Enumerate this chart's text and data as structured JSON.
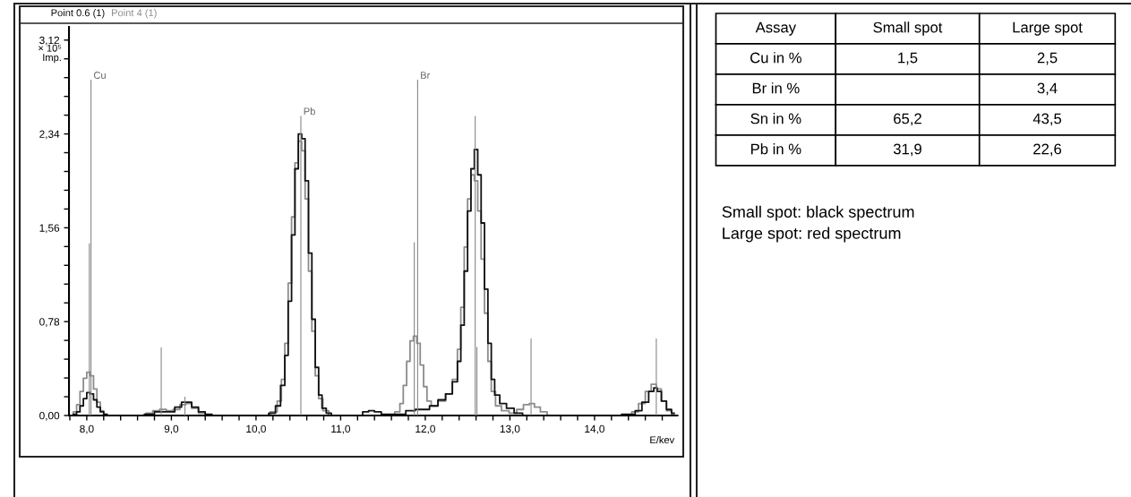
{
  "chart_data": [
    {
      "type": "step",
      "legend": "top left",
      "xlabel": "E/kev",
      "ylabel": "× 10⁵\nImp.",
      "xlim": [
        7.79,
        14.98
      ],
      "ylim": [
        0,
        3.23
      ],
      "xticks": [
        {
          "value": 7.8,
          "label": null
        },
        {
          "value": 8.0,
          "label": "8,0"
        },
        {
          "value": 8.2,
          "label": null
        },
        {
          "value": 8.4,
          "label": null
        },
        {
          "value": 8.6,
          "label": null
        },
        {
          "value": 8.8,
          "label": null
        },
        {
          "value": 9.0,
          "label": "9,0"
        },
        {
          "value": 9.2,
          "label": null
        },
        {
          "value": 9.4,
          "label": null
        },
        {
          "value": 9.6,
          "label": null
        },
        {
          "value": 9.8,
          "label": null
        },
        {
          "value": 10.0,
          "label": "10,0"
        },
        {
          "value": 10.2,
          "label": null
        },
        {
          "value": 10.4,
          "label": null
        },
        {
          "value": 10.6,
          "label": null
        },
        {
          "value": 10.8,
          "label": null
        },
        {
          "value": 11.0,
          "label": "11,0"
        },
        {
          "value": 11.2,
          "label": null
        },
        {
          "value": 11.4,
          "label": null
        },
        {
          "value": 11.6,
          "label": null
        },
        {
          "value": 11.8,
          "label": null
        },
        {
          "value": 12.0,
          "label": "12,0"
        },
        {
          "value": 12.2,
          "label": null
        },
        {
          "value": 12.4,
          "label": null
        },
        {
          "value": 12.6,
          "label": null
        },
        {
          "value": 12.8,
          "label": null
        },
        {
          "value": 13.0,
          "label": "13,0"
        },
        {
          "value": 13.2,
          "label": null
        },
        {
          "value": 13.4,
          "label": null
        },
        {
          "value": 13.6,
          "label": null
        },
        {
          "value": 13.8,
          "label": null
        },
        {
          "value": 14.0,
          "label": "14,0"
        },
        {
          "value": 14.2,
          "label": null
        },
        {
          "value": 14.4,
          "label": null
        },
        {
          "value": 14.6,
          "label": null
        },
        {
          "value": 14.8,
          "label": null
        }
      ],
      "yticks": [
        {
          "value": 0,
          "label": "0,00"
        },
        {
          "value": 0.156,
          "label": null
        },
        {
          "value": 0.312,
          "label": null
        },
        {
          "value": 0.468,
          "label": null
        },
        {
          "value": 0.624,
          "label": null
        },
        {
          "value": 0.78,
          "label": "0,78"
        },
        {
          "value": 0.936,
          "label": null
        },
        {
          "value": 1.092,
          "label": null
        },
        {
          "value": 1.248,
          "label": null
        },
        {
          "value": 1.404,
          "label": null
        },
        {
          "value": 1.56,
          "label": "1,56"
        },
        {
          "value": 1.716,
          "label": null
        },
        {
          "value": 1.872,
          "label": null
        },
        {
          "value": 2.028,
          "label": null
        },
        {
          "value": 2.184,
          "label": null
        },
        {
          "value": 2.34,
          "label": "2,34"
        },
        {
          "value": 2.496,
          "label": null
        },
        {
          "value": 2.652,
          "label": null
        },
        {
          "value": 2.808,
          "label": null
        },
        {
          "value": 2.964,
          "label": null
        },
        {
          "value": 3.12,
          "label": "3,12"
        }
      ],
      "annotations": [
        {
          "text": "Cu",
          "x": 8.05,
          "y": 2.79
        },
        {
          "text": "Pb",
          "x": 10.53,
          "y": 2.49
        },
        {
          "text": "Br",
          "x": 11.91,
          "y": 2.79
        }
      ],
      "series": [
        {
          "type": "bar",
          "color": "#8a8a8a",
          "x": [
            8.03,
            8.05,
            8.88,
            9.16,
            10.53,
            11.87,
            11.91,
            12.59,
            12.61,
            13.25,
            14.73
          ],
          "values": [
            1.43,
            2.79,
            0.565,
            0.156,
            2.49,
            1.44,
            2.79,
            2.49,
            0.57,
            0.64,
            0.64
          ]
        },
        {
          "name": "Point 4 (1)",
          "color": "#8c8c8c",
          "x": [
            7.82,
            7.86,
            7.9,
            7.94,
            7.98,
            8.02,
            8.06,
            8.1,
            8.14,
            8.18,
            8.22,
            8.26,
            8.66,
            8.74,
            8.82,
            8.9,
            8.98,
            9.06,
            9.14,
            9.2,
            9.28,
            9.36,
            9.44,
            10.12,
            10.22,
            10.28,
            10.32,
            10.36,
            10.4,
            10.44,
            10.48,
            10.52,
            10.56,
            10.6,
            10.64,
            10.68,
            10.72,
            10.76,
            10.82,
            10.9,
            11.6,
            11.68,
            11.72,
            11.76,
            11.8,
            11.84,
            11.88,
            11.92,
            11.96,
            12.0,
            12.04,
            12.1,
            12.2,
            12.28,
            12.36,
            12.4,
            12.44,
            12.48,
            12.52,
            12.56,
            12.6,
            12.64,
            12.68,
            12.72,
            12.76,
            12.8,
            12.86,
            12.94,
            13.04,
            13.12,
            13.2,
            13.26,
            13.32,
            13.4,
            13.48,
            14.4,
            14.48,
            14.56,
            14.64,
            14.7,
            14.76,
            14.82,
            14.88,
            14.94
          ],
          "values": [
            0,
            0.03,
            0.09,
            0.2,
            0.31,
            0.36,
            0.33,
            0.22,
            0.11,
            0.04,
            0.01,
            0,
            0,
            0.02,
            0.04,
            0.05,
            0.04,
            0.05,
            0.09,
            0.1,
            0.06,
            0.02,
            0,
            0,
            0.03,
            0.12,
            0.3,
            0.6,
            1.1,
            1.65,
            2.1,
            2.28,
            2.2,
            1.8,
            1.2,
            0.7,
            0.33,
            0.14,
            0.04,
            0,
            0,
            0.03,
            0.1,
            0.25,
            0.45,
            0.62,
            0.66,
            0.6,
            0.42,
            0.24,
            0.12,
            0.08,
            0.12,
            0.18,
            0.3,
            0.55,
            0.9,
            1.4,
            1.8,
            2.0,
            1.95,
            1.7,
            1.3,
            0.85,
            0.45,
            0.2,
            0.08,
            0.04,
            0.02,
            0.05,
            0.09,
            0.1,
            0.07,
            0.03,
            0,
            0,
            0.03,
            0.1,
            0.2,
            0.26,
            0.22,
            0.12,
            0.04,
            0.01
          ]
        },
        {
          "name": "Point 0.6 (1)",
          "color": "#111111",
          "x": [
            7.82,
            7.86,
            7.9,
            7.94,
            7.98,
            8.02,
            8.06,
            8.1,
            8.14,
            8.18,
            8.22,
            8.26,
            8.6,
            8.76,
            8.84,
            8.92,
            9.0,
            9.08,
            9.16,
            9.2,
            9.28,
            9.36,
            9.44,
            9.52,
            10.1,
            10.2,
            10.26,
            10.32,
            10.36,
            10.4,
            10.44,
            10.48,
            10.52,
            10.56,
            10.6,
            10.64,
            10.68,
            10.72,
            10.76,
            10.8,
            10.86,
            10.92,
            11.22,
            11.3,
            11.36,
            11.44,
            11.52,
            11.7,
            11.84,
            11.92,
            12.0,
            12.1,
            12.2,
            12.28,
            12.36,
            12.4,
            12.44,
            12.48,
            12.52,
            12.56,
            12.6,
            12.64,
            12.68,
            12.72,
            12.76,
            12.8,
            12.84,
            12.92,
            13.0,
            13.1,
            13.2,
            14.2,
            14.44,
            14.52,
            14.6,
            14.68,
            14.72,
            14.76,
            14.82,
            14.88,
            14.94
          ],
          "values": [
            0,
            0.01,
            0.03,
            0.08,
            0.14,
            0.19,
            0.18,
            0.13,
            0.07,
            0.03,
            0.01,
            0,
            0,
            0.01,
            0.03,
            0.03,
            0.03,
            0.07,
            0.11,
            0.11,
            0.07,
            0.03,
            0.01,
            0,
            0,
            0.02,
            0.08,
            0.25,
            0.5,
            0.95,
            1.5,
            2.05,
            2.34,
            2.3,
            1.95,
            1.35,
            0.8,
            0.4,
            0.17,
            0.06,
            0.02,
            0,
            0,
            0.03,
            0.04,
            0.03,
            0.01,
            0.01,
            0.04,
            0.05,
            0.05,
            0.08,
            0.13,
            0.18,
            0.28,
            0.45,
            0.75,
            1.2,
            1.7,
            2.05,
            2.21,
            2.0,
            1.6,
            1.05,
            0.6,
            0.3,
            0.17,
            0.1,
            0.06,
            0.02,
            0,
            0,
            0.01,
            0.04,
            0.11,
            0.2,
            0.23,
            0.2,
            0.12,
            0.05,
            0.02
          ]
        }
      ]
    },
    {
      "type": "other",
      "ylabel": "Assay",
      "categories": [
        "Cu in %",
        "Br in %",
        "Sn in %",
        "Pb in %"
      ],
      "series": [
        {
          "name": "Small spot",
          "values": [
            1.5,
            null,
            65.2,
            31.9
          ],
          "value_labels": [
            "1,5",
            null,
            "65,2",
            "31,9"
          ]
        },
        {
          "name": "Large spot",
          "values": [
            2.5,
            3.4,
            43.5,
            22.6
          ],
          "value_labels": [
            "2,5",
            "3,4",
            "43,5",
            "22,6"
          ]
        }
      ],
      "annotations": [
        "Small spot: black spectrum",
        "Large spot: red spectrum"
      ]
    }
  ]
}
